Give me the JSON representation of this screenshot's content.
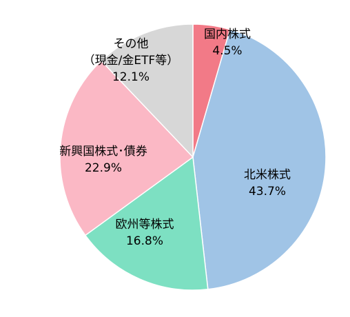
{
  "chart_data": {
    "type": "pie",
    "start_angle_deg": 0,
    "direction": "clockwise",
    "slices": [
      {
        "name": "国内株式",
        "sub": "",
        "value": 4.5,
        "value_label": "4.5%",
        "color": "#F27A87"
      },
      {
        "name": "北米株式",
        "sub": "",
        "value": 43.7,
        "value_label": "43.7%",
        "color": "#A0C4E6"
      },
      {
        "name": "欧州等株式",
        "sub": "",
        "value": 16.8,
        "value_label": "16.8%",
        "color": "#7DE0C2"
      },
      {
        "name": "新興国株式･債券",
        "sub": "",
        "value": 22.9,
        "value_label": "22.9%",
        "color": "#FBB8C5"
      },
      {
        "name": "その他",
        "sub": "（現金/金ETF等）",
        "value": 12.1,
        "value_label": "12.1%",
        "color": "#D7D7D7"
      }
    ]
  }
}
